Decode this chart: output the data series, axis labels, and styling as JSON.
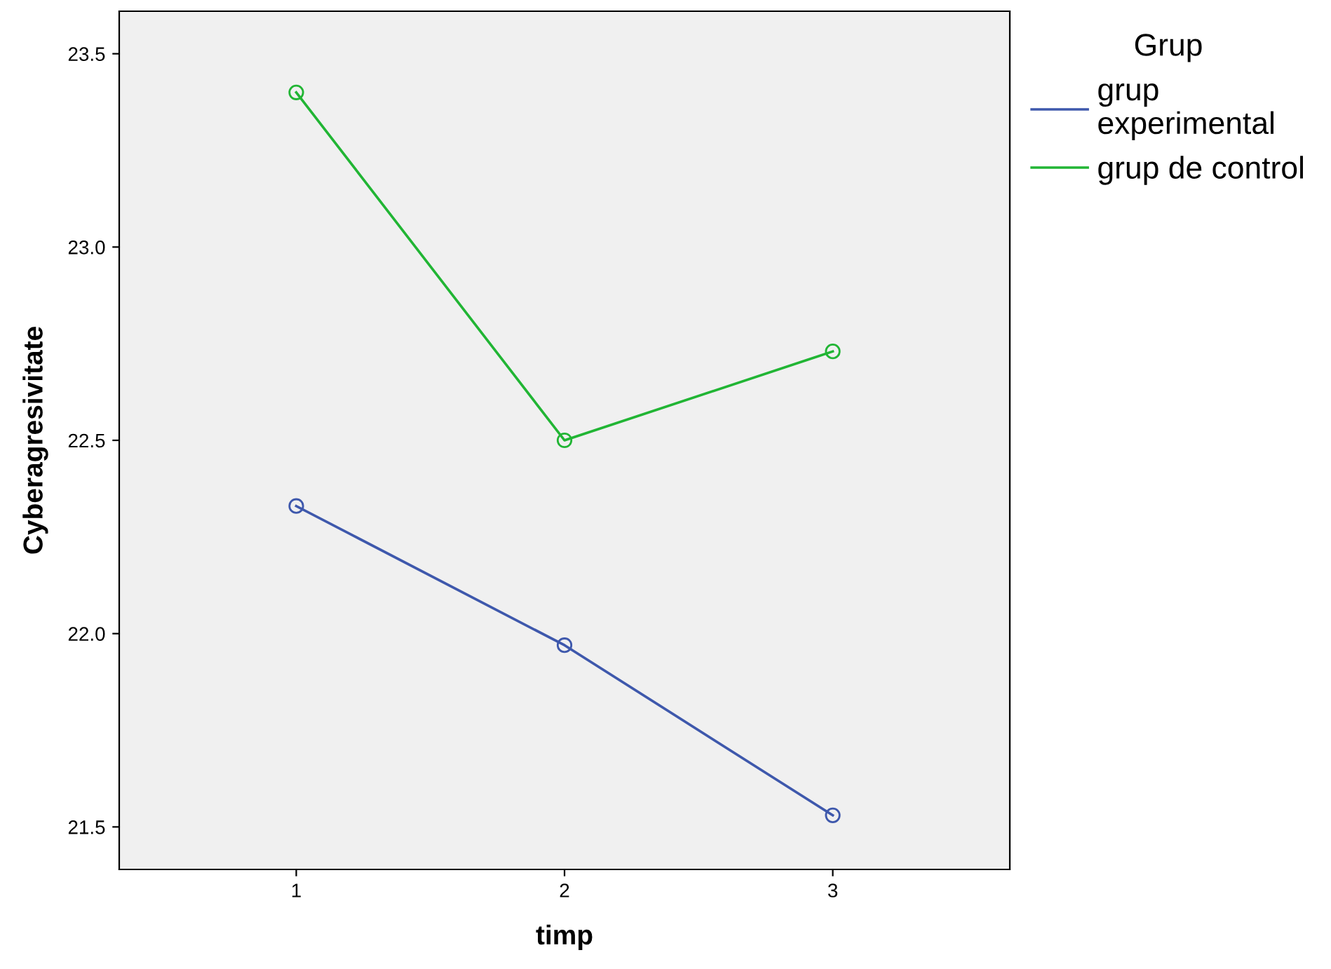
{
  "chart_data": {
    "type": "line",
    "xlabel": "timp",
    "ylabel": "Cyberagresivitate",
    "legend_title": "Grup",
    "legend": "right",
    "marker": "circle",
    "line_style": "solid",
    "grid": false,
    "x": [
      1,
      2,
      3
    ],
    "xlim": [
      0.34,
      3.66
    ],
    "xticks": [
      1,
      2,
      3
    ],
    "ylim": [
      21.39,
      23.61
    ],
    "yticks": [
      21.5,
      {
        "value": 22,
        "label": "22.0"
      },
      22.5,
      {
        "value": 23,
        "label": "23.0"
      },
      23.5
    ],
    "series": [
      {
        "name": "grup\nexperimental",
        "color": "#3e58ac",
        "values": [
          22.33,
          21.97,
          21.53
        ]
      },
      {
        "name": "grup de control",
        "color": "#21b534",
        "values": [
          23.4,
          22.5,
          22.73
        ]
      }
    ]
  }
}
